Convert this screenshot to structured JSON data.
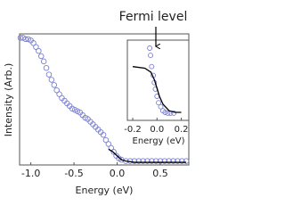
{
  "chart_data": [
    {
      "type": "scatter",
      "xlabel": "Energy (eV)",
      "ylabel": "Intensity (Arb.)",
      "xlim": [
        -1.13,
        0.83
      ],
      "ylim": [
        0,
        1
      ],
      "xticks": [
        {
          "value": -1,
          "label": "-1.0"
        },
        {
          "value": -0.5,
          "label": "-0.5"
        },
        {
          "value": 0,
          "label": "0.0"
        },
        0.5
      ],
      "series": [
        {
          "mode": "markers",
          "color": "#7b80d2",
          "x": [
            -1.12,
            -1.09,
            -1.06,
            -1.03,
            -1.0,
            -0.97,
            -0.94,
            -0.91,
            -0.88,
            -0.85,
            -0.82,
            -0.79,
            -0.76,
            -0.73,
            -0.7,
            -0.67,
            -0.64,
            -0.61,
            -0.58,
            -0.55,
            -0.52,
            -0.49,
            -0.46,
            -0.43,
            -0.4,
            -0.37,
            -0.34,
            -0.31,
            -0.28,
            -0.25,
            -0.22,
            -0.19,
            -0.16,
            -0.13,
            -0.1,
            -0.07,
            -0.04,
            -0.01,
            0.02,
            0.05,
            0.1,
            0.15,
            0.2,
            0.25,
            0.3,
            0.35,
            0.4,
            0.45,
            0.5,
            0.55,
            0.6,
            0.65,
            0.7,
            0.75,
            0.8
          ],
          "values": [
            0.97,
            0.97,
            0.96,
            0.96,
            0.95,
            0.93,
            0.9,
            0.87,
            0.83,
            0.79,
            0.74,
            0.69,
            0.65,
            0.61,
            0.57,
            0.54,
            0.51,
            0.49,
            0.47,
            0.45,
            0.43,
            0.42,
            0.41,
            0.4,
            0.38,
            0.36,
            0.35,
            0.33,
            0.31,
            0.29,
            0.27,
            0.25,
            0.23,
            0.19,
            0.16,
            0.13,
            0.1,
            0.07,
            0.05,
            0.04,
            0.03,
            0.03,
            0.03,
            0.03,
            0.03,
            0.03,
            0.03,
            0.03,
            0.03,
            0.03,
            0.03,
            0.03,
            0.03,
            0.03,
            0.03
          ]
        },
        {
          "mode": "line",
          "color": "#000000",
          "x": [
            -0.1,
            -0.05,
            0,
            0.05,
            0.1,
            0.2,
            0.4,
            0.8
          ],
          "values": [
            0.12,
            0.1,
            0.07,
            0.04,
            0.03,
            0.02,
            0.02,
            0.02
          ]
        }
      ]
    },
    {
      "type": "scatter",
      "xlabel": "Energy (eV)",
      "annotation": "Fermi level",
      "xlim": [
        -0.244,
        0.262
      ],
      "ylim": [
        0,
        1
      ],
      "xticks": [
        {
          "value": -0.2,
          "label": "-0.2"
        },
        {
          "value": 0,
          "label": "0.0"
        },
        0.2
      ],
      "series": [
        {
          "mode": "markers",
          "color": "#7b80d2",
          "x": [
            -0.06,
            -0.053,
            -0.044,
            -0.031,
            -0.022,
            -0.013,
            0,
            0.013,
            0.031,
            0.049,
            0.067,
            0.089,
            0.111,
            0.138
          ],
          "values": [
            0.9,
            0.81,
            0.67,
            0.56,
            0.47,
            0.39,
            0.3,
            0.22,
            0.17,
            0.12,
            0.1,
            0.09,
            0.09,
            0.09
          ]
        },
        {
          "mode": "line",
          "color": "#000000",
          "x": [
            -0.2,
            -0.1,
            -0.05,
            -0.02,
            0,
            0.02,
            0.05,
            0.1,
            0.15,
            0.2
          ],
          "values": [
            0.67,
            0.65,
            0.6,
            0.5,
            0.4,
            0.3,
            0.2,
            0.12,
            0.1,
            0.1
          ]
        }
      ]
    }
  ]
}
